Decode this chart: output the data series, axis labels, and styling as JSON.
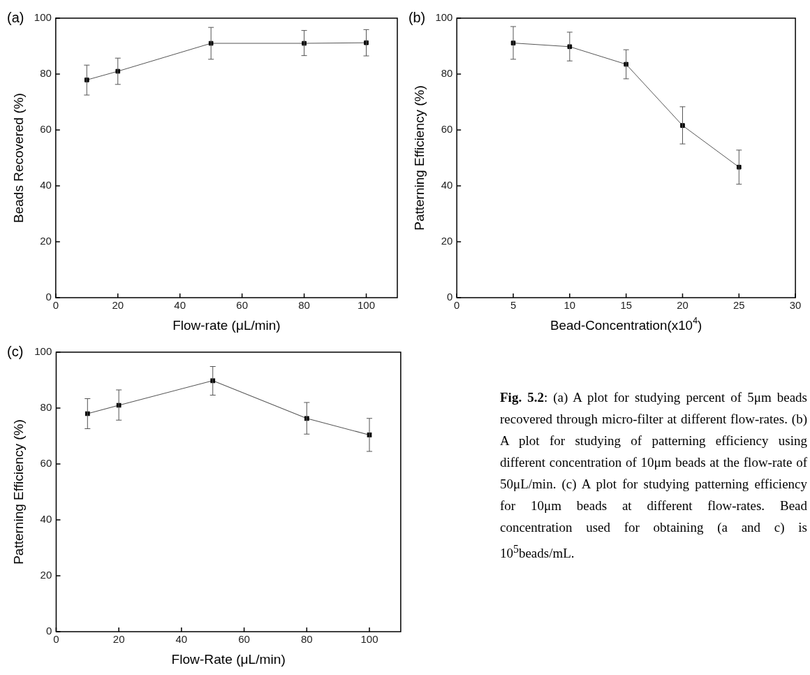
{
  "chart_data": [
    {
      "type": "line",
      "title": "(a)",
      "xlabel": "Flow-rate (μL/min)",
      "ylabel": "Beads Recovered (%)",
      "xlim": [
        0,
        110
      ],
      "xticks": [
        0,
        20,
        40,
        60,
        80,
        100
      ],
      "ylim": [
        0,
        100
      ],
      "yticks": [
        0,
        20,
        40,
        60,
        80,
        100
      ],
      "marker": "square",
      "line_style": "solid",
      "grid": false,
      "legend": false,
      "series": [
        {
          "color": "#000000",
          "x": [
            10,
            20,
            50,
            80,
            100
          ],
          "values": [
            77.9,
            81,
            91,
            91,
            91.2
          ],
          "errors": [
            [
              72.5,
              83.2
            ],
            [
              76.3,
              85.7
            ],
            [
              85.3,
              96.7
            ],
            [
              86.6,
              95.6
            ],
            [
              86.5,
              95.9
            ]
          ]
        }
      ]
    },
    {
      "type": "line",
      "title": "(b)",
      "xlabel": "Bead-Concentration(x10$^{4}$)",
      "ylabel": "Patterning Efficiency (%)",
      "xlim": [
        0,
        30
      ],
      "xticks": [
        0,
        5,
        10,
        15,
        20,
        25,
        30
      ],
      "ylim": [
        0,
        100
      ],
      "yticks": [
        0,
        20,
        40,
        60,
        80,
        100
      ],
      "marker": "square",
      "line_style": "solid",
      "grid": false,
      "legend": false,
      "series": [
        {
          "color": "#000000",
          "x": [
            5,
            10,
            15,
            20,
            25
          ],
          "values": [
            91.1,
            89.8,
            83.5,
            61.6,
            46.7
          ],
          "errors": [
            [
              85.3,
              97
            ],
            [
              84.7,
              95
            ],
            [
              78.3,
              88.7
            ],
            [
              55,
              68.3
            ],
            [
              40.6,
              52.8
            ]
          ]
        }
      ]
    },
    {
      "type": "line",
      "title": "(c)",
      "xlabel": "Flow-Rate (μL/min)",
      "ylabel": "Patterning Efficiency (%)",
      "xlim": [
        0,
        110
      ],
      "xticks": [
        0,
        20,
        40,
        60,
        80,
        100
      ],
      "ylim": [
        0,
        100
      ],
      "yticks": [
        0,
        20,
        40,
        60,
        80,
        100
      ],
      "marker": "square",
      "line_style": "solid",
      "grid": false,
      "legend": false,
      "series": [
        {
          "color": "#000000",
          "x": [
            10,
            20,
            50,
            80,
            100
          ],
          "values": [
            78,
            81,
            89.8,
            76.3,
            70.4
          ],
          "errors": [
            [
              72.6,
              83.4
            ],
            [
              75.7,
              86.5
            ],
            [
              84.6,
              94.9
            ],
            [
              70.7,
              82
            ],
            [
              64.5,
              76.3
            ]
          ]
        }
      ]
    },
    {
      "type": "other",
      "title": "Fig. 5.2",
      "annotations": [
        ": (a) A plot for studying percent of 5μm beads recovered through micro-filter at different flow-rates. (b) A plot for studying of patterning efficiency using different concentration of 10μm beads at the flow-rate of 50μL/min. (c) A plot for studying patterning efficiency for 10μm beads at different flow-rates. Bead concentration used for obtaining (a and c) is 10$^{5}$beads/mL."
      ]
    }
  ]
}
